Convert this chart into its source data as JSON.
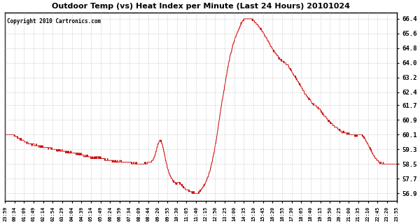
{
  "title": "Outdoor Temp (vs) Heat Index per Minute (Last 24 Hours) 20101024",
  "copyright": "Copyright 2010 Cartronics.com",
  "line_color": "#cc0000",
  "bg_color": "#ffffff",
  "grid_color": "#bbbbbb",
  "yticks": [
    56.9,
    57.7,
    58.5,
    59.3,
    60.1,
    60.9,
    61.7,
    62.4,
    63.2,
    64.0,
    64.8,
    65.6,
    66.4
  ],
  "ylim": [
    56.5,
    66.75
  ],
  "xtick_labels": [
    "23:59",
    "00:34",
    "01:09",
    "01:49",
    "02:14",
    "02:54",
    "03:29",
    "04:04",
    "04:39",
    "05:14",
    "05:49",
    "06:24",
    "06:59",
    "07:34",
    "08:09",
    "08:44",
    "09:20",
    "09:55",
    "10:30",
    "11:05",
    "11:40",
    "12:15",
    "12:50",
    "13:25",
    "14:00",
    "14:35",
    "15:10",
    "15:45",
    "16:20",
    "16:55",
    "17:30",
    "18:05",
    "18:40",
    "19:15",
    "19:50",
    "20:25",
    "21:00",
    "21:35",
    "22:10",
    "22:45",
    "23:20",
    "23:55"
  ],
  "keypoints": [
    [
      0,
      60.1
    ],
    [
      25,
      60.1
    ],
    [
      35,
      60.05
    ],
    [
      50,
      59.9
    ],
    [
      70,
      59.75
    ],
    [
      90,
      59.6
    ],
    [
      120,
      59.5
    ],
    [
      150,
      59.4
    ],
    [
      180,
      59.3
    ],
    [
      200,
      59.25
    ],
    [
      230,
      59.15
    ],
    [
      255,
      59.1
    ],
    [
      270,
      59.05
    ],
    [
      285,
      59.0
    ],
    [
      295,
      58.95
    ],
    [
      310,
      58.88
    ],
    [
      325,
      58.82
    ],
    [
      340,
      58.88
    ],
    [
      355,
      58.82
    ],
    [
      370,
      58.75
    ],
    [
      390,
      58.68
    ],
    [
      410,
      58.62
    ],
    [
      425,
      58.62
    ],
    [
      440,
      58.6
    ],
    [
      455,
      58.58
    ],
    [
      470,
      58.55
    ],
    [
      485,
      58.52
    ],
    [
      500,
      58.5
    ],
    [
      515,
      58.52
    ],
    [
      525,
      58.55
    ],
    [
      540,
      58.65
    ],
    [
      548,
      58.85
    ],
    [
      553,
      59.1
    ],
    [
      558,
      59.4
    ],
    [
      563,
      59.65
    ],
    [
      568,
      59.8
    ],
    [
      572,
      59.8
    ],
    [
      577,
      59.6
    ],
    [
      582,
      59.3
    ],
    [
      587,
      58.95
    ],
    [
      592,
      58.6
    ],
    [
      597,
      58.3
    ],
    [
      602,
      58.05
    ],
    [
      607,
      57.85
    ],
    [
      612,
      57.7
    ],
    [
      618,
      57.58
    ],
    [
      625,
      57.48
    ],
    [
      632,
      57.42
    ],
    [
      638,
      57.52
    ],
    [
      644,
      57.45
    ],
    [
      650,
      57.35
    ],
    [
      656,
      57.25
    ],
    [
      662,
      57.18
    ],
    [
      668,
      57.12
    ],
    [
      675,
      57.05
    ],
    [
      682,
      57.0
    ],
    [
      690,
      56.95
    ],
    [
      698,
      56.9
    ],
    [
      706,
      56.92
    ],
    [
      714,
      57.0
    ],
    [
      722,
      57.15
    ],
    [
      730,
      57.3
    ],
    [
      738,
      57.5
    ],
    [
      746,
      57.8
    ],
    [
      754,
      58.2
    ],
    [
      762,
      58.7
    ],
    [
      770,
      59.3
    ],
    [
      778,
      60.0
    ],
    [
      786,
      60.8
    ],
    [
      794,
      61.6
    ],
    [
      802,
      62.3
    ],
    [
      810,
      63.0
    ],
    [
      818,
      63.7
    ],
    [
      826,
      64.3
    ],
    [
      834,
      64.8
    ],
    [
      842,
      65.2
    ],
    [
      850,
      65.55
    ],
    [
      858,
      65.8
    ],
    [
      866,
      66.1
    ],
    [
      874,
      66.3
    ],
    [
      882,
      66.4
    ],
    [
      890,
      66.42
    ],
    [
      900,
      66.4
    ],
    [
      910,
      66.35
    ],
    [
      920,
      66.2
    ],
    [
      930,
      66.05
    ],
    [
      940,
      65.85
    ],
    [
      950,
      65.6
    ],
    [
      960,
      65.35
    ],
    [
      970,
      65.1
    ],
    [
      980,
      64.85
    ],
    [
      990,
      64.6
    ],
    [
      1000,
      64.4
    ],
    [
      1010,
      64.2
    ],
    [
      1018,
      64.1
    ],
    [
      1025,
      64.05
    ],
    [
      1030,
      64.0
    ],
    [
      1038,
      63.9
    ],
    [
      1045,
      63.75
    ],
    [
      1052,
      63.6
    ],
    [
      1060,
      63.4
    ],
    [
      1068,
      63.2
    ],
    [
      1076,
      63.0
    ],
    [
      1084,
      62.8
    ],
    [
      1092,
      62.6
    ],
    [
      1100,
      62.4
    ],
    [
      1110,
      62.2
    ],
    [
      1120,
      62.0
    ],
    [
      1130,
      61.8
    ],
    [
      1140,
      61.7
    ],
    [
      1150,
      61.55
    ],
    [
      1160,
      61.4
    ],
    [
      1170,
      61.2
    ],
    [
      1180,
      61.0
    ],
    [
      1190,
      60.85
    ],
    [
      1200,
      60.7
    ],
    [
      1210,
      60.55
    ],
    [
      1220,
      60.45
    ],
    [
      1230,
      60.35
    ],
    [
      1240,
      60.25
    ],
    [
      1250,
      60.2
    ],
    [
      1260,
      60.15
    ],
    [
      1270,
      60.1
    ],
    [
      1280,
      60.08
    ],
    [
      1290,
      60.05
    ],
    [
      1298,
      60.1
    ],
    [
      1306,
      60.1
    ],
    [
      1314,
      60.05
    ],
    [
      1322,
      59.9
    ],
    [
      1330,
      59.7
    ],
    [
      1340,
      59.4
    ],
    [
      1350,
      59.1
    ],
    [
      1360,
      58.85
    ],
    [
      1375,
      58.6
    ],
    [
      1390,
      58.52
    ],
    [
      1410,
      58.5
    ],
    [
      1425,
      58.5
    ],
    [
      1439,
      58.5
    ]
  ]
}
